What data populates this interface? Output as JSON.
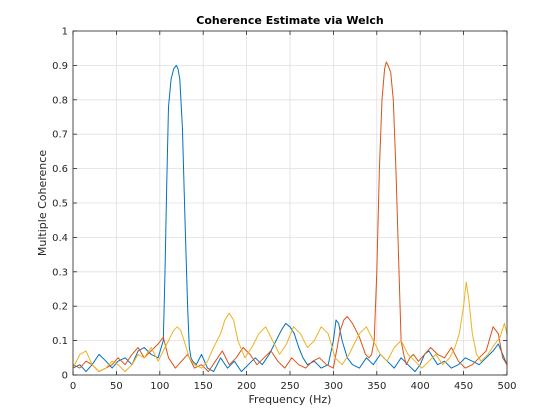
{
  "chart_data": {
    "type": "line",
    "title": "Coherence Estimate via Welch",
    "xlabel": "Frequency (Hz)",
    "ylabel": "Multiple Coherence",
    "xlim": [
      0,
      500
    ],
    "ylim": [
      0,
      1
    ],
    "grid": true,
    "box": true,
    "xticks": [
      0,
      50,
      100,
      150,
      200,
      250,
      300,
      350,
      400,
      450,
      500
    ],
    "xtick_labels": [
      "0",
      "50",
      "100",
      "150",
      "200",
      "250",
      "300",
      "350",
      "400",
      "450",
      "500"
    ],
    "yticks": [
      0,
      0.1,
      0.2,
      0.3,
      0.4,
      0.5,
      0.6,
      0.7,
      0.8,
      0.9,
      1
    ],
    "ytick_labels": [
      "0",
      "0.1",
      "0.2",
      "0.3",
      "0.4",
      "0.5",
      "0.6",
      "0.7",
      "0.8",
      "0.9",
      "1"
    ],
    "series": [
      {
        "color": "#0072BD",
        "x": [
          0,
          8,
          15,
          22,
          30,
          38,
          45,
          52,
          60,
          68,
          75,
          82,
          90,
          98,
          104,
          106,
          108,
          110,
          113,
          116,
          119,
          121,
          123,
          126,
          129,
          132,
          134,
          136,
          138,
          142,
          148,
          155,
          162,
          170,
          178,
          186,
          194,
          202,
          210,
          218,
          226,
          234,
          240,
          245,
          250,
          255,
          260,
          265,
          270,
          278,
          286,
          294,
          300,
          303,
          306,
          310,
          316,
          322,
          330,
          338,
          346,
          354,
          362,
          370,
          378,
          386,
          394,
          400,
          405,
          410,
          415,
          420,
          428,
          436,
          444,
          452,
          460,
          468,
          476,
          484,
          490,
          495,
          500
        ],
        "y": [
          0.02,
          0.03,
          0.01,
          0.03,
          0.06,
          0.04,
          0.02,
          0.04,
          0.05,
          0.03,
          0.07,
          0.08,
          0.06,
          0.05,
          0.1,
          0.3,
          0.55,
          0.78,
          0.86,
          0.89,
          0.9,
          0.89,
          0.86,
          0.72,
          0.45,
          0.2,
          0.08,
          0.05,
          0.04,
          0.03,
          0.06,
          0.02,
          0.01,
          0.05,
          0.02,
          0.04,
          0.01,
          0.03,
          0.05,
          0.03,
          0.06,
          0.1,
          0.13,
          0.15,
          0.14,
          0.12,
          0.08,
          0.05,
          0.03,
          0.04,
          0.02,
          0.03,
          0.1,
          0.16,
          0.15,
          0.1,
          0.05,
          0.03,
          0.02,
          0.05,
          0.03,
          0.06,
          0.04,
          0.02,
          0.05,
          0.03,
          0.01,
          0.03,
          0.06,
          0.07,
          0.05,
          0.03,
          0.04,
          0.02,
          0.03,
          0.05,
          0.04,
          0.03,
          0.05,
          0.07,
          0.09,
          0.06,
          0.03
        ]
      },
      {
        "color": "#D95319",
        "x": [
          0,
          8,
          15,
          22,
          30,
          38,
          45,
          52,
          60,
          68,
          75,
          82,
          90,
          98,
          104,
          110,
          118,
          125,
          132,
          140,
          148,
          156,
          164,
          172,
          180,
          188,
          196,
          204,
          212,
          220,
          228,
          236,
          244,
          252,
          260,
          268,
          276,
          284,
          292,
          300,
          308,
          312,
          316,
          322,
          330,
          337,
          341,
          344,
          347,
          350,
          353,
          356,
          359,
          361,
          363,
          366,
          369,
          372,
          375,
          378,
          381,
          384,
          388,
          392,
          398,
          405,
          412,
          420,
          428,
          436,
          444,
          452,
          460,
          468,
          476,
          484,
          490,
          495,
          500
        ],
        "y": [
          0.03,
          0.02,
          0.04,
          0.03,
          0.01,
          0.02,
          0.03,
          0.05,
          0.03,
          0.06,
          0.08,
          0.05,
          0.07,
          0.09,
          0.11,
          0.05,
          0.02,
          0.04,
          0.06,
          0.02,
          0.03,
          0.01,
          0.04,
          0.07,
          0.03,
          0.05,
          0.08,
          0.06,
          0.03,
          0.05,
          0.07,
          0.04,
          0.02,
          0.05,
          0.03,
          0.02,
          0.04,
          0.05,
          0.03,
          0.02,
          0.13,
          0.16,
          0.17,
          0.15,
          0.11,
          0.06,
          0.05,
          0.06,
          0.1,
          0.3,
          0.6,
          0.8,
          0.89,
          0.91,
          0.9,
          0.88,
          0.8,
          0.6,
          0.35,
          0.1,
          0.06,
          0.03,
          0.05,
          0.06,
          0.04,
          0.06,
          0.08,
          0.06,
          0.05,
          0.08,
          0.04,
          0.02,
          0.03,
          0.05,
          0.07,
          0.14,
          0.12,
          0.05,
          0.03
        ]
      },
      {
        "color": "#EDB120",
        "x": [
          0,
          8,
          15,
          22,
          30,
          38,
          45,
          52,
          60,
          68,
          75,
          82,
          90,
          98,
          104,
          110,
          116,
          120,
          124,
          128,
          134,
          140,
          148,
          155,
          162,
          170,
          175,
          180,
          185,
          190,
          198,
          206,
          214,
          222,
          230,
          238,
          246,
          254,
          262,
          270,
          278,
          286,
          294,
          302,
          310,
          318,
          324,
          330,
          338,
          346,
          354,
          362,
          370,
          378,
          386,
          394,
          402,
          410,
          418,
          426,
          434,
          440,
          445,
          450,
          453,
          456,
          460,
          465,
          470,
          478,
          486,
          492,
          497,
          500
        ],
        "y": [
          0.02,
          0.06,
          0.07,
          0.03,
          0.01,
          0.02,
          0.04,
          0.03,
          0.01,
          0.03,
          0.06,
          0.05,
          0.08,
          0.04,
          0.07,
          0.1,
          0.13,
          0.14,
          0.13,
          0.1,
          0.05,
          0.03,
          0.02,
          0.04,
          0.08,
          0.12,
          0.16,
          0.18,
          0.16,
          0.1,
          0.05,
          0.08,
          0.12,
          0.14,
          0.1,
          0.06,
          0.09,
          0.14,
          0.12,
          0.08,
          0.1,
          0.14,
          0.12,
          0.05,
          0.03,
          0.06,
          0.09,
          0.12,
          0.14,
          0.1,
          0.06,
          0.04,
          0.08,
          0.1,
          0.06,
          0.04,
          0.02,
          0.04,
          0.06,
          0.03,
          0.05,
          0.08,
          0.12,
          0.2,
          0.27,
          0.22,
          0.12,
          0.06,
          0.04,
          0.06,
          0.09,
          0.11,
          0.15,
          0.12
        ]
      }
    ]
  }
}
